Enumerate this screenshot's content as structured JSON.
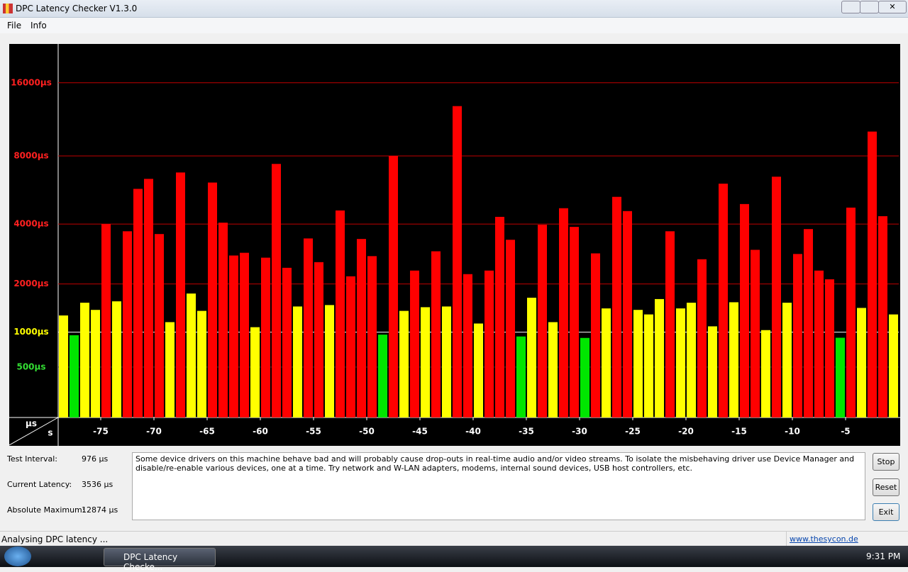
{
  "window": {
    "title": "DPC Latency Checker V1.3.0"
  },
  "menu": [
    "File",
    "Info"
  ],
  "chart_data": {
    "type": "bar",
    "y_label": "µs",
    "x_label": "s",
    "values": [
      1300,
      950,
      1560,
      1410,
      4000,
      1590,
      3700,
      5770,
      6380,
      3590,
      1175,
      6800,
      1766,
      1390,
      6150,
      4060,
      2820,
      2910,
      1085,
      2750,
      7400,
      2440,
      1480,
      3420,
      2610,
      1510,
      4620,
      2200,
      3400,
      2800,
      960,
      8000,
      1390,
      2360,
      1465,
      2960,
      1480,
      12874,
      2260,
      1150,
      2360,
      4320,
      3370,
      930,
      1670,
      3970,
      1175,
      4730,
      3880,
      907,
      2890,
      1440,
      5320,
      4590,
      1410,
      1320,
      1640,
      3700,
      1440,
      1560,
      2700,
      1100,
      6080,
      1570,
      4940,
      3010,
      1035,
      6520,
      1560,
      2870,
      3790,
      2360,
      2120,
      910,
      4760,
      1450,
      10120,
      4350,
      1320
    ],
    "colors": [
      "#ffff00",
      "#00e600",
      "#ffff00",
      "#ffff00",
      "#ff0000",
      "#ffff00",
      "#ff0000",
      "#ff0000",
      "#ff0000",
      "#ff0000",
      "#ffff00",
      "#ff0000",
      "#ffff00",
      "#ffff00",
      "#ff0000",
      "#ff0000",
      "#ff0000",
      "#ff0000",
      "#ffff00",
      "#ff0000",
      "#ff0000",
      "#ff0000",
      "#ffff00",
      "#ff0000",
      "#ff0000",
      "#ffff00",
      "#ff0000",
      "#ff0000",
      "#ff0000",
      "#ff0000",
      "#00e600",
      "#ff0000",
      "#ffff00",
      "#ff0000",
      "#ffff00",
      "#ff0000",
      "#ffff00",
      "#ff0000",
      "#ff0000",
      "#ffff00",
      "#ff0000",
      "#ff0000",
      "#ff0000",
      "#00e600",
      "#ffff00",
      "#ff0000",
      "#ffff00",
      "#ff0000",
      "#ff0000",
      "#00e600",
      "#ff0000",
      "#ffff00",
      "#ff0000",
      "#ff0000",
      "#ffff00",
      "#ffff00",
      "#ffff00",
      "#ff0000",
      "#ffff00",
      "#ffff00",
      "#ff0000",
      "#ffff00",
      "#ff0000",
      "#ffff00",
      "#ff0000",
      "#ff0000",
      "#ffff00",
      "#ff0000",
      "#ffff00",
      "#ff0000",
      "#ff0000",
      "#ff0000",
      "#ff0000",
      "#00e600",
      "#ff0000",
      "#ffff00",
      "#ff0000",
      "#ff0000",
      "#ffff00"
    ],
    "xlim": [
      -79,
      0
    ],
    "xticks": [
      -75,
      -70,
      -65,
      -60,
      -55,
      -50,
      -45,
      -40,
      -35,
      -30,
      -25,
      -20,
      -15,
      -10,
      -5
    ],
    "ylim": [
      0,
      22700
    ],
    "yticks": [
      {
        "value": 500,
        "label": "500µs"
      },
      {
        "value": 1000,
        "label": "1000µs"
      },
      {
        "value": 2000,
        "label": "2000µs"
      },
      {
        "value": 4000,
        "label": "4000µs"
      },
      {
        "value": 8000,
        "label": "8000µs"
      },
      {
        "value": 16000,
        "label": "16000µs"
      }
    ],
    "ytick_colors": [
      "#33dd33",
      "#ffff00",
      "#ff2020",
      "#ff2020",
      "#ff2020",
      "#ff2020"
    ],
    "grid_colors": [
      "#303030",
      "#ffffff",
      "#c00000",
      "#c00000",
      "#c00000",
      "#c00000"
    ]
  },
  "stats": [
    {
      "label": "Test Interval:",
      "value": "976 µs"
    },
    {
      "label": "Current Latency:",
      "value": "3536 µs"
    },
    {
      "label": "Absolute Maximum:",
      "value": "12874 µs"
    }
  ],
  "message": "Some device drivers on this machine behave bad and will probably cause drop-outs in real-time audio and/or video streams. To isolate the misbehaving driver use Device Manager and disable/re-enable various devices, one at a time. Try network and W-LAN adapters, modems, internal sound devices, USB host controllers, etc.",
  "buttons": [
    "Stop",
    "Reset",
    "Exit"
  ],
  "status": {
    "text": "Analysing DPC latency ...",
    "link": "www.thesycon.de"
  },
  "taskbar": {
    "task": "DPC Latency Checke...",
    "clock": "9:31 PM"
  }
}
